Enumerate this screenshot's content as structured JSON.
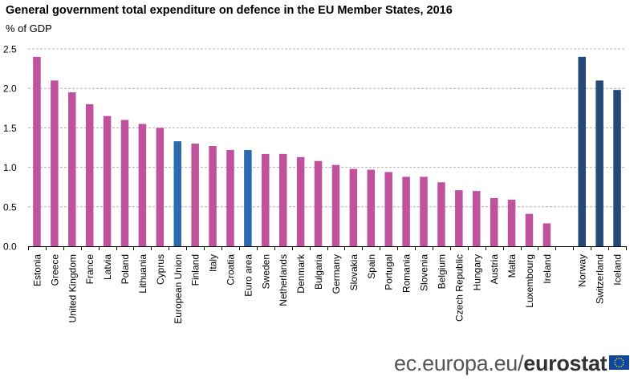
{
  "chart_data": {
    "type": "bar",
    "title": "General government total expenditure on defence in the EU Member States, 2016",
    "subtitle": "% of GDP",
    "xlabel": "",
    "ylabel": "% of GDP",
    "ylim": [
      0,
      2.5
    ],
    "yticks": [
      "0.0",
      "0.5",
      "1.0",
      "1.5",
      "2.0",
      "2.5"
    ],
    "grid": true,
    "categories": [
      "Estonia",
      "Greece",
      "United Kingdom",
      "France",
      "Latvia",
      "Poland",
      "Lithuania",
      "Cyprus",
      "European Union",
      "Finland",
      "Italy",
      "Croatia",
      "Euro area",
      "Sweden",
      "Netherlands",
      "Denmark",
      "Bulgaria",
      "Germany",
      "Slovakia",
      "Spain",
      "Portugal",
      "Romania",
      "Slovenia",
      "Belgium",
      "Czech Republic",
      "Hungary",
      "Austria",
      "Malta",
      "Luxembourg",
      "Ireland",
      "",
      "Norway",
      "Switzerland",
      "Iceland"
    ],
    "values": [
      2.4,
      2.1,
      1.95,
      1.8,
      1.65,
      1.6,
      1.55,
      1.5,
      1.33,
      1.3,
      1.27,
      1.22,
      1.22,
      1.17,
      1.17,
      1.13,
      1.08,
      1.03,
      0.98,
      0.97,
      0.94,
      0.88,
      0.88,
      0.81,
      0.71,
      0.7,
      0.61,
      0.59,
      0.41,
      0.29,
      null,
      2.4,
      2.1,
      1.98
    ],
    "groups": [
      "member",
      "member",
      "member",
      "member",
      "member",
      "member",
      "member",
      "member",
      "aggregate",
      "member",
      "member",
      "member",
      "aggregate",
      "member",
      "member",
      "member",
      "member",
      "member",
      "member",
      "member",
      "member",
      "member",
      "member",
      "member",
      "member",
      "member",
      "member",
      "member",
      "member",
      "member",
      "gap",
      "efta",
      "efta",
      "efta"
    ],
    "colors": {
      "member": "#c0519c",
      "aggregate": "#2a6aad",
      "efta": "#254877"
    }
  },
  "footer": {
    "site": "ec.europa.eu/",
    "brand": "eurostat"
  }
}
